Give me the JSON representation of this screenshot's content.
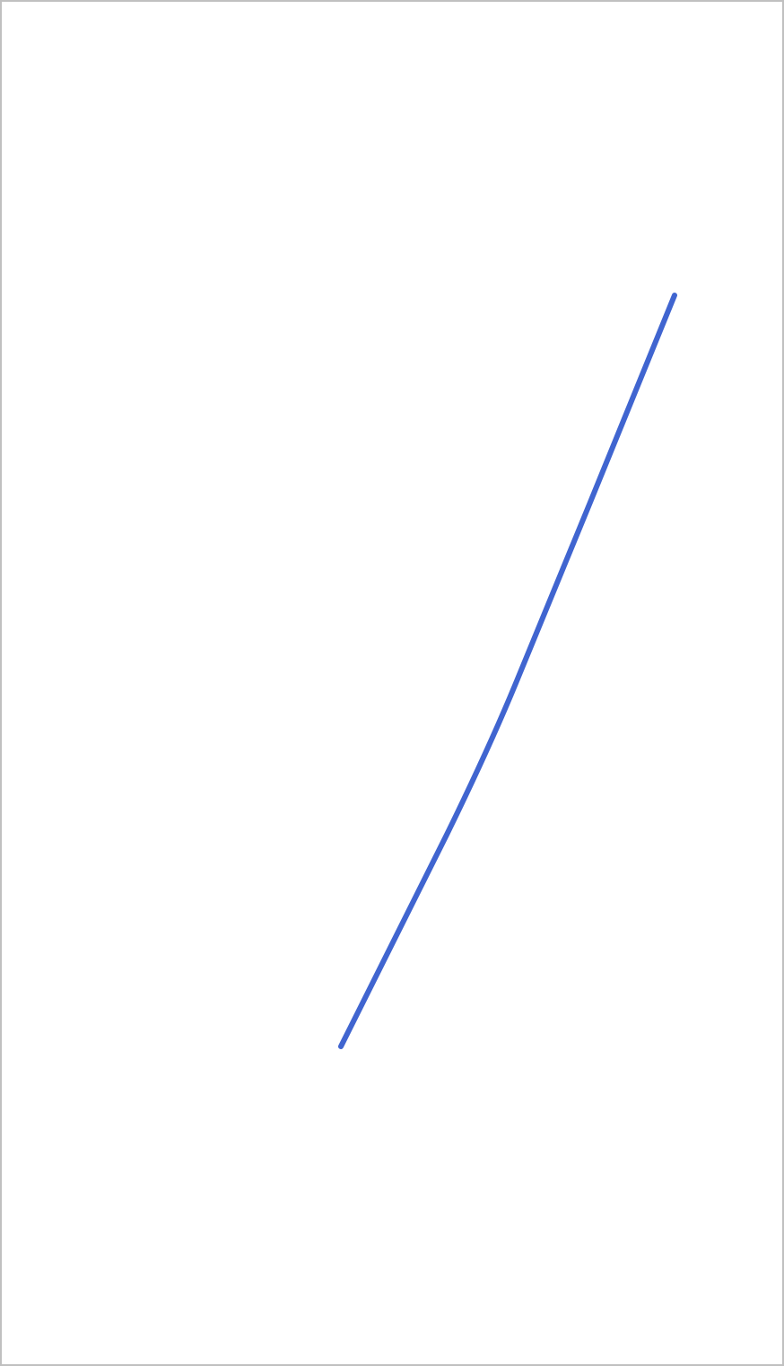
{
  "canvas": {
    "background_color": "#ffffff",
    "border_color": "#c0c0c0"
  },
  "stroke": {
    "color": "#4065d0",
    "cap": "round"
  }
}
